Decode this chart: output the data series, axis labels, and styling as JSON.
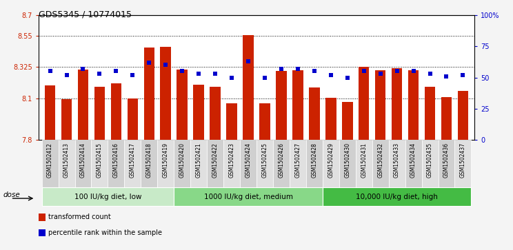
{
  "title": "GDS5345 / 10774015",
  "samples": [
    "GSM1502412",
    "GSM1502413",
    "GSM1502414",
    "GSM1502415",
    "GSM1502416",
    "GSM1502417",
    "GSM1502418",
    "GSM1502419",
    "GSM1502420",
    "GSM1502421",
    "GSM1502422",
    "GSM1502423",
    "GSM1502424",
    "GSM1502425",
    "GSM1502426",
    "GSM1502427",
    "GSM1502428",
    "GSM1502429",
    "GSM1502430",
    "GSM1502431",
    "GSM1502432",
    "GSM1502433",
    "GSM1502434",
    "GSM1502435",
    "GSM1502436",
    "GSM1502437"
  ],
  "bar_values": [
    8.195,
    8.095,
    8.305,
    8.185,
    8.21,
    8.1,
    8.465,
    8.47,
    8.305,
    8.2,
    8.185,
    8.065,
    8.555,
    8.065,
    8.295,
    8.3,
    8.18,
    8.105,
    8.075,
    8.325,
    8.3,
    8.315,
    8.3,
    8.185,
    8.11,
    8.155
  ],
  "percentile_values": [
    55,
    52,
    57,
    53,
    55,
    52,
    62,
    60,
    55,
    53,
    53,
    50,
    63,
    50,
    57,
    57,
    55,
    52,
    50,
    55,
    53,
    55,
    55,
    53,
    51,
    52
  ],
  "bar_color": "#cc2200",
  "dot_color": "#0000cc",
  "ylim_left": [
    7.8,
    8.7
  ],
  "ylim_right": [
    0,
    100
  ],
  "yticks_left": [
    7.8,
    8.1,
    8.325,
    8.55,
    8.7
  ],
  "ytick_labels_left": [
    "7.8",
    "8.1",
    "8.325",
    "8.55",
    "8.7"
  ],
  "yticks_right": [
    0,
    25,
    50,
    75,
    100
  ],
  "ytick_labels_right": [
    "0",
    "25",
    "50",
    "75",
    "100%"
  ],
  "hlines": [
    8.1,
    8.325,
    8.55
  ],
  "groups": [
    {
      "label": "100 IU/kg diet, low",
      "start": 0,
      "end": 8
    },
    {
      "label": "1000 IU/kg diet, medium",
      "start": 8,
      "end": 17
    },
    {
      "label": "10,000 IU/kg diet, high",
      "start": 17,
      "end": 26
    }
  ],
  "group_greens": [
    "#c8eac8",
    "#88d888",
    "#44bb44"
  ],
  "dose_label": "dose",
  "legend_items": [
    {
      "color": "#cc2200",
      "label": "transformed count"
    },
    {
      "color": "#0000cc",
      "label": "percentile rank within the sample"
    }
  ],
  "fig_bg": "#f4f4f4",
  "plot_bg": "#ffffff"
}
